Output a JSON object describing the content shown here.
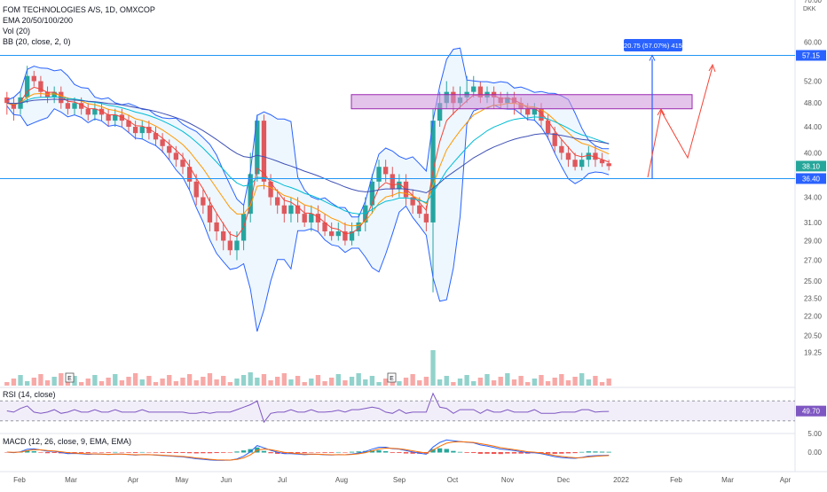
{
  "chart_data": {
    "type": "candlestick",
    "symbol_line": "FOM TECHNOLOGIES A/S, 1D, OMXCOP",
    "indicators": [
      "EMA 20/50/100/200",
      "Vol (20)",
      "BB (20, close, 2, 0)"
    ],
    "currency": "DKK",
    "price_axis": {
      "min": 17,
      "max": 70,
      "ticks": [
        70.0,
        60.0,
        52.0,
        48.0,
        44.0,
        40.0,
        34.0,
        31.0,
        29.0,
        27.0,
        25.0,
        23.5,
        22.0,
        20.5,
        19.25
      ]
    },
    "x_axis": {
      "ticks": [
        "Feb",
        "Mar",
        "Apr",
        "May",
        "Jun",
        "Jul",
        "Aug",
        "Sep",
        "Oct",
        "Nov",
        "Dec",
        "2022",
        "Feb",
        "Mar",
        "Apr"
      ]
    },
    "horizontal_lines": [
      57.15,
      36.4
    ],
    "price_tags": [
      {
        "label": "57.15",
        "value": 57.15,
        "color": "#2962ff"
      },
      {
        "label": "38.10",
        "value": 38.1,
        "color": "#26a69a"
      },
      {
        "label": "36.40",
        "value": 36.4,
        "color": "#2962ff"
      }
    ],
    "zone": {
      "top": 49.5,
      "bottom": 47.0,
      "color": "#ce93d8"
    },
    "measure": {
      "label": "20.75 (57.07%) 415",
      "from": 36.4,
      "to": 57.15
    },
    "earnings_markers": [
      "E",
      "E"
    ],
    "series_price": [
      [
        49,
        48,
        50,
        46
      ],
      [
        48,
        47,
        49,
        45
      ],
      [
        47,
        49,
        50,
        46
      ],
      [
        49,
        53,
        55,
        48
      ],
      [
        53,
        52,
        54,
        51
      ],
      [
        52,
        50,
        53,
        49
      ],
      [
        50,
        49,
        51,
        48
      ],
      [
        49,
        50,
        51,
        48
      ],
      [
        50,
        48,
        51,
        47
      ],
      [
        48,
        47,
        49,
        46
      ],
      [
        47,
        48,
        49,
        46
      ],
      [
        48,
        47,
        49,
        46
      ],
      [
        47,
        46,
        48,
        45
      ],
      [
        46,
        47,
        48,
        45
      ],
      [
        47,
        46,
        48,
        45
      ],
      [
        46,
        45,
        47,
        44
      ],
      [
        45,
        46,
        47,
        44
      ],
      [
        46,
        45,
        47,
        44
      ],
      [
        45,
        44,
        46,
        43
      ],
      [
        44,
        43,
        45,
        42
      ],
      [
        43,
        44,
        45,
        42
      ],
      [
        44,
        43,
        45,
        42
      ],
      [
        43,
        42,
        44,
        41
      ],
      [
        42,
        41,
        43,
        40
      ],
      [
        41,
        40,
        42,
        39
      ],
      [
        40,
        39,
        41,
        38
      ],
      [
        39,
        38,
        40,
        37
      ],
      [
        38,
        36,
        39,
        35
      ],
      [
        36,
        34,
        37,
        33
      ],
      [
        34,
        33,
        35,
        32
      ],
      [
        33,
        31,
        34,
        30
      ],
      [
        31,
        30,
        32,
        29
      ],
      [
        30,
        29,
        31,
        28
      ],
      [
        29,
        28,
        30,
        27.5
      ],
      [
        28,
        29,
        30,
        27
      ],
      [
        29,
        32,
        33,
        28
      ],
      [
        32,
        37,
        40,
        31
      ],
      [
        37,
        45,
        46,
        36
      ],
      [
        45,
        36,
        46,
        35
      ],
      [
        36,
        34,
        37,
        33
      ],
      [
        34,
        33,
        35,
        32
      ],
      [
        33,
        32,
        34,
        31
      ],
      [
        32,
        33,
        34,
        31
      ],
      [
        33,
        32,
        34,
        31
      ],
      [
        32,
        31,
        33,
        30.5
      ],
      [
        31,
        32,
        33,
        30
      ],
      [
        32,
        31,
        33,
        30
      ],
      [
        31,
        30,
        32,
        29.5
      ],
      [
        30,
        29.5,
        31,
        29
      ],
      [
        29.5,
        30,
        31,
        29
      ],
      [
        30,
        29,
        31,
        28.5
      ],
      [
        29,
        30,
        31,
        28.5
      ],
      [
        30,
        31,
        32,
        29.5
      ],
      [
        31,
        33,
        34,
        30
      ],
      [
        33,
        36,
        37,
        32
      ],
      [
        36,
        38,
        39,
        35
      ],
      [
        38,
        37,
        39,
        36
      ],
      [
        37,
        35,
        38,
        34
      ],
      [
        35,
        36,
        37,
        34
      ],
      [
        36,
        34,
        37,
        33
      ],
      [
        34,
        33,
        35,
        32
      ],
      [
        33,
        32,
        34,
        31.5
      ],
      [
        32,
        31,
        33,
        30
      ],
      [
        31,
        45,
        47,
        24
      ],
      [
        45,
        48,
        50,
        44
      ],
      [
        48,
        50,
        52,
        47
      ],
      [
        50,
        48,
        51,
        46
      ],
      [
        48,
        49,
        51,
        47
      ],
      [
        49,
        50,
        53,
        48
      ],
      [
        50,
        51,
        53,
        49
      ],
      [
        51,
        49,
        52,
        48
      ],
      [
        49,
        50,
        51,
        48
      ],
      [
        50,
        49,
        51,
        47
      ],
      [
        49,
        48,
        50,
        47
      ],
      [
        48,
        49,
        50,
        47
      ],
      [
        49,
        48,
        50,
        46
      ],
      [
        48,
        47,
        49,
        46
      ],
      [
        47,
        46,
        48,
        45
      ],
      [
        46,
        47,
        48,
        45
      ],
      [
        47,
        45,
        48,
        44
      ],
      [
        45,
        43,
        46,
        42
      ],
      [
        43,
        41,
        44,
        40
      ],
      [
        41,
        40,
        42,
        39
      ],
      [
        40,
        39,
        41,
        38
      ],
      [
        39,
        38,
        40,
        37.5
      ],
      [
        38,
        39,
        40,
        37.5
      ],
      [
        39,
        40,
        41,
        38
      ],
      [
        40,
        39,
        41,
        38
      ],
      [
        39,
        38.5,
        40,
        38
      ],
      [
        38.5,
        38.1,
        39,
        37.5
      ]
    ],
    "rsi": {
      "label": "RSI (14, close)",
      "value": 49.7,
      "upper": 70,
      "lower": 30
    },
    "macd": {
      "label": "MACD (12, 26, close, 9, EMA, EMA)",
      "ticks": [
        5.0,
        0.0
      ]
    }
  }
}
